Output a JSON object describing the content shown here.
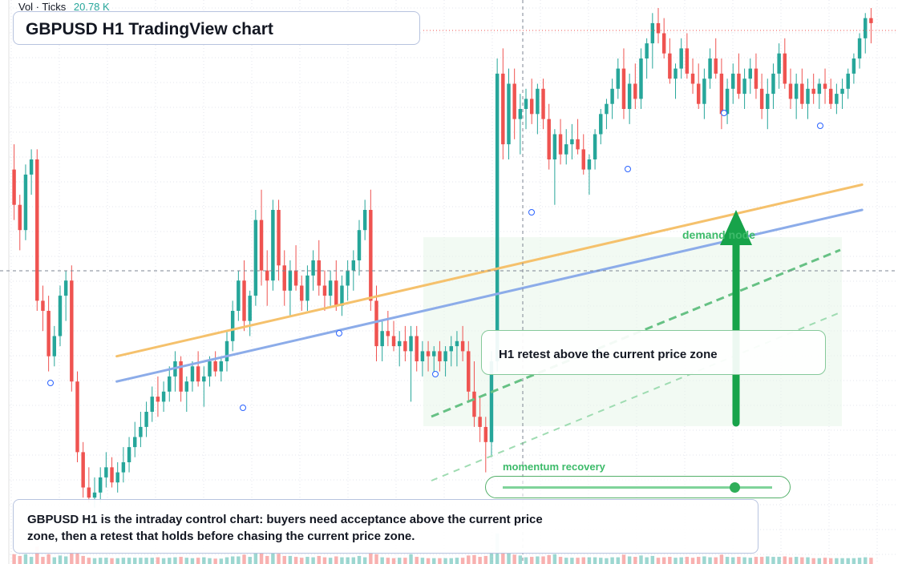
{
  "header": {
    "vol_label": "Vol · Ticks",
    "vol_value": "20.78 K",
    "title": "GBPUSD H1 TradingView chart"
  },
  "annotations": {
    "callout": "H1 retest above the current price zone",
    "demand_label": "demand node",
    "momentum_label": "momentum recovery",
    "momentum_level": 0.86,
    "note": "GBPUSD H1 is the intraday control chart: buyers need acceptance above the current price zone, then a retest that holds before chasing the current price zone."
  },
  "colors": {
    "up": "#26a69a",
    "down": "#ef5350",
    "orange_line": "#f5c16c",
    "blue_line": "#8cace9",
    "green_accent": "#3dbb6a",
    "zone_fill": "#e8f5ea"
  },
  "chart_data": {
    "type": "candlestick",
    "symbol": "GBPUSD",
    "timeframe": "H1",
    "price_scale": "relative (no axis labels shown)",
    "ylim": [
      0,
      100
    ],
    "candles": [
      {
        "o": 68,
        "h": 73,
        "l": 58,
        "c": 61
      },
      {
        "o": 61,
        "h": 63,
        "l": 52,
        "c": 56
      },
      {
        "o": 56,
        "h": 69,
        "l": 54,
        "c": 67
      },
      {
        "o": 67,
        "h": 72,
        "l": 63,
        "c": 70
      },
      {
        "o": 70,
        "h": 72,
        "l": 40,
        "c": 42
      },
      {
        "o": 42,
        "h": 45,
        "l": 36,
        "c": 40
      },
      {
        "o": 40,
        "h": 43,
        "l": 28,
        "c": 31
      },
      {
        "o": 31,
        "h": 37,
        "l": 29,
        "c": 35
      },
      {
        "o": 35,
        "h": 45,
        "l": 33,
        "c": 43
      },
      {
        "o": 43,
        "h": 48,
        "l": 38,
        "c": 46
      },
      {
        "o": 46,
        "h": 49,
        "l": 24,
        "c": 26
      },
      {
        "o": 26,
        "h": 28,
        "l": 10,
        "c": 12
      },
      {
        "o": 12,
        "h": 14,
        "l": 3,
        "c": 5
      },
      {
        "o": 5,
        "h": 9,
        "l": 2,
        "c": 3
      },
      {
        "o": 3,
        "h": 7,
        "l": 1,
        "c": 4
      },
      {
        "o": 4,
        "h": 9,
        "l": 2,
        "c": 7
      },
      {
        "o": 7,
        "h": 12,
        "l": 5,
        "c": 9
      },
      {
        "o": 9,
        "h": 11,
        "l": 5,
        "c": 6
      },
      {
        "o": 6,
        "h": 10,
        "l": 4,
        "c": 8
      },
      {
        "o": 8,
        "h": 13,
        "l": 6,
        "c": 10
      },
      {
        "o": 10,
        "h": 15,
        "l": 8,
        "c": 13
      },
      {
        "o": 13,
        "h": 18,
        "l": 11,
        "c": 15
      },
      {
        "o": 15,
        "h": 20,
        "l": 13,
        "c": 17
      },
      {
        "o": 17,
        "h": 22,
        "l": 15,
        "c": 20
      },
      {
        "o": 20,
        "h": 25,
        "l": 18,
        "c": 23
      },
      {
        "o": 23,
        "h": 27,
        "l": 19,
        "c": 22
      },
      {
        "o": 22,
        "h": 26,
        "l": 20,
        "c": 24
      },
      {
        "o": 24,
        "h": 29,
        "l": 22,
        "c": 27
      },
      {
        "o": 27,
        "h": 32,
        "l": 24,
        "c": 30
      },
      {
        "o": 30,
        "h": 31,
        "l": 22,
        "c": 24
      },
      {
        "o": 24,
        "h": 27,
        "l": 20,
        "c": 26
      },
      {
        "o": 26,
        "h": 30,
        "l": 24,
        "c": 29
      },
      {
        "o": 29,
        "h": 32,
        "l": 25,
        "c": 26
      },
      {
        "o": 26,
        "h": 29,
        "l": 21,
        "c": 27
      },
      {
        "o": 27,
        "h": 31,
        "l": 25,
        "c": 30
      },
      {
        "o": 30,
        "h": 32,
        "l": 27,
        "c": 28
      },
      {
        "o": 28,
        "h": 31,
        "l": 26,
        "c": 30
      },
      {
        "o": 30,
        "h": 36,
        "l": 28,
        "c": 34
      },
      {
        "o": 34,
        "h": 42,
        "l": 32,
        "c": 40
      },
      {
        "o": 40,
        "h": 48,
        "l": 38,
        "c": 46
      },
      {
        "o": 46,
        "h": 50,
        "l": 36,
        "c": 38
      },
      {
        "o": 38,
        "h": 44,
        "l": 35,
        "c": 43
      },
      {
        "o": 43,
        "h": 60,
        "l": 41,
        "c": 58
      },
      {
        "o": 58,
        "h": 64,
        "l": 45,
        "c": 48
      },
      {
        "o": 48,
        "h": 52,
        "l": 41,
        "c": 46
      },
      {
        "o": 46,
        "h": 62,
        "l": 44,
        "c": 60
      },
      {
        "o": 60,
        "h": 62,
        "l": 46,
        "c": 49
      },
      {
        "o": 49,
        "h": 52,
        "l": 41,
        "c": 44
      },
      {
        "o": 44,
        "h": 50,
        "l": 39,
        "c": 48
      },
      {
        "o": 48,
        "h": 53,
        "l": 44,
        "c": 45
      },
      {
        "o": 45,
        "h": 47,
        "l": 40,
        "c": 42
      },
      {
        "o": 42,
        "h": 49,
        "l": 40,
        "c": 47
      },
      {
        "o": 47,
        "h": 52,
        "l": 44,
        "c": 50
      },
      {
        "o": 50,
        "h": 54,
        "l": 43,
        "c": 45
      },
      {
        "o": 45,
        "h": 48,
        "l": 40,
        "c": 43
      },
      {
        "o": 43,
        "h": 48,
        "l": 41,
        "c": 46
      },
      {
        "o": 46,
        "h": 50,
        "l": 40,
        "c": 41
      },
      {
        "o": 41,
        "h": 47,
        "l": 39,
        "c": 45
      },
      {
        "o": 45,
        "h": 50,
        "l": 42,
        "c": 48
      },
      {
        "o": 48,
        "h": 52,
        "l": 44,
        "c": 50
      },
      {
        "o": 50,
        "h": 58,
        "l": 47,
        "c": 56
      },
      {
        "o": 56,
        "h": 62,
        "l": 54,
        "c": 60
      },
      {
        "o": 60,
        "h": 64,
        "l": 40,
        "c": 42
      },
      {
        "o": 42,
        "h": 45,
        "l": 30,
        "c": 33
      },
      {
        "o": 33,
        "h": 38,
        "l": 30,
        "c": 36
      },
      {
        "o": 36,
        "h": 40,
        "l": 33,
        "c": 35
      },
      {
        "o": 35,
        "h": 38,
        "l": 32,
        "c": 33
      },
      {
        "o": 33,
        "h": 36,
        "l": 29,
        "c": 34
      },
      {
        "o": 34,
        "h": 37,
        "l": 30,
        "c": 32
      },
      {
        "o": 32,
        "h": 37,
        "l": 22,
        "c": 35
      },
      {
        "o": 35,
        "h": 37,
        "l": 28,
        "c": 30
      },
      {
        "o": 30,
        "h": 34,
        "l": 27,
        "c": 32
      },
      {
        "o": 32,
        "h": 34,
        "l": 28,
        "c": 31
      },
      {
        "o": 31,
        "h": 33,
        "l": 27,
        "c": 32
      },
      {
        "o": 32,
        "h": 34,
        "l": 28,
        "c": 30
      },
      {
        "o": 30,
        "h": 33,
        "l": 27,
        "c": 32
      },
      {
        "o": 32,
        "h": 35,
        "l": 29,
        "c": 33
      },
      {
        "o": 33,
        "h": 36,
        "l": 29,
        "c": 34
      },
      {
        "o": 34,
        "h": 37,
        "l": 30,
        "c": 32
      },
      {
        "o": 32,
        "h": 34,
        "l": 22,
        "c": 24
      },
      {
        "o": 24,
        "h": 30,
        "l": 17,
        "c": 19
      },
      {
        "o": 19,
        "h": 23,
        "l": 14,
        "c": 17
      },
      {
        "o": 17,
        "h": 19,
        "l": 8,
        "c": 14
      },
      {
        "o": 14,
        "h": 32,
        "l": 11,
        "c": 30
      },
      {
        "o": 30,
        "h": 90,
        "l": 28,
        "c": 87
      },
      {
        "o": 87,
        "h": 92,
        "l": 70,
        "c": 73
      },
      {
        "o": 73,
        "h": 88,
        "l": 70,
        "c": 85
      },
      {
        "o": 85,
        "h": 88,
        "l": 74,
        "c": 78
      },
      {
        "o": 78,
        "h": 83,
        "l": 71,
        "c": 80
      },
      {
        "o": 80,
        "h": 84,
        "l": 76,
        "c": 82
      },
      {
        "o": 82,
        "h": 86,
        "l": 77,
        "c": 79
      },
      {
        "o": 79,
        "h": 85,
        "l": 75,
        "c": 84
      },
      {
        "o": 84,
        "h": 86,
        "l": 76,
        "c": 78
      },
      {
        "o": 78,
        "h": 81,
        "l": 68,
        "c": 70
      },
      {
        "o": 70,
        "h": 76,
        "l": 61,
        "c": 75
      },
      {
        "o": 75,
        "h": 78,
        "l": 69,
        "c": 71
      },
      {
        "o": 71,
        "h": 76,
        "l": 69,
        "c": 73
      },
      {
        "o": 73,
        "h": 77,
        "l": 70,
        "c": 74
      },
      {
        "o": 74,
        "h": 78,
        "l": 71,
        "c": 72
      },
      {
        "o": 72,
        "h": 75,
        "l": 67,
        "c": 68
      },
      {
        "o": 68,
        "h": 71,
        "l": 63,
        "c": 70
      },
      {
        "o": 70,
        "h": 76,
        "l": 68,
        "c": 75
      },
      {
        "o": 75,
        "h": 80,
        "l": 73,
        "c": 79
      },
      {
        "o": 79,
        "h": 82,
        "l": 76,
        "c": 81
      },
      {
        "o": 81,
        "h": 86,
        "l": 78,
        "c": 84
      },
      {
        "o": 84,
        "h": 90,
        "l": 82,
        "c": 88
      },
      {
        "o": 88,
        "h": 92,
        "l": 78,
        "c": 80
      },
      {
        "o": 80,
        "h": 87,
        "l": 77,
        "c": 85
      },
      {
        "o": 85,
        "h": 89,
        "l": 80,
        "c": 82
      },
      {
        "o": 82,
        "h": 92,
        "l": 80,
        "c": 90
      },
      {
        "o": 90,
        "h": 94,
        "l": 86,
        "c": 93
      },
      {
        "o": 93,
        "h": 99,
        "l": 88,
        "c": 97
      },
      {
        "o": 97,
        "h": 100,
        "l": 93,
        "c": 95
      },
      {
        "o": 95,
        "h": 98,
        "l": 90,
        "c": 91
      },
      {
        "o": 91,
        "h": 94,
        "l": 85,
        "c": 86
      },
      {
        "o": 86,
        "h": 89,
        "l": 82,
        "c": 88
      },
      {
        "o": 88,
        "h": 94,
        "l": 86,
        "c": 92
      },
      {
        "o": 92,
        "h": 95,
        "l": 86,
        "c": 87
      },
      {
        "o": 87,
        "h": 90,
        "l": 83,
        "c": 85
      },
      {
        "o": 85,
        "h": 89,
        "l": 80,
        "c": 81
      },
      {
        "o": 81,
        "h": 88,
        "l": 78,
        "c": 86
      },
      {
        "o": 86,
        "h": 92,
        "l": 84,
        "c": 90
      },
      {
        "o": 90,
        "h": 94,
        "l": 86,
        "c": 87
      },
      {
        "o": 87,
        "h": 90,
        "l": 76,
        "c": 79
      },
      {
        "o": 79,
        "h": 86,
        "l": 77,
        "c": 84
      },
      {
        "o": 84,
        "h": 89,
        "l": 81,
        "c": 87
      },
      {
        "o": 87,
        "h": 91,
        "l": 82,
        "c": 83
      },
      {
        "o": 83,
        "h": 88,
        "l": 80,
        "c": 86
      },
      {
        "o": 86,
        "h": 90,
        "l": 83,
        "c": 88
      },
      {
        "o": 88,
        "h": 91,
        "l": 82,
        "c": 84
      },
      {
        "o": 84,
        "h": 87,
        "l": 78,
        "c": 80
      },
      {
        "o": 80,
        "h": 86,
        "l": 76,
        "c": 83
      },
      {
        "o": 83,
        "h": 89,
        "l": 80,
        "c": 87
      },
      {
        "o": 87,
        "h": 93,
        "l": 84,
        "c": 91
      },
      {
        "o": 91,
        "h": 94,
        "l": 84,
        "c": 85
      },
      {
        "o": 85,
        "h": 88,
        "l": 80,
        "c": 82
      },
      {
        "o": 82,
        "h": 87,
        "l": 78,
        "c": 85
      },
      {
        "o": 85,
        "h": 88,
        "l": 80,
        "c": 81
      },
      {
        "o": 81,
        "h": 86,
        "l": 78,
        "c": 84
      },
      {
        "o": 84,
        "h": 87,
        "l": 81,
        "c": 83
      },
      {
        "o": 83,
        "h": 86,
        "l": 80,
        "c": 85
      },
      {
        "o": 85,
        "h": 88,
        "l": 81,
        "c": 84
      },
      {
        "o": 84,
        "h": 86,
        "l": 80,
        "c": 81
      },
      {
        "o": 81,
        "h": 85,
        "l": 79,
        "c": 83
      },
      {
        "o": 83,
        "h": 86,
        "l": 80,
        "c": 84
      },
      {
        "o": 84,
        "h": 88,
        "l": 82,
        "c": 87
      },
      {
        "o": 87,
        "h": 91,
        "l": 85,
        "c": 90
      },
      {
        "o": 90,
        "h": 95,
        "l": 88,
        "c": 94
      },
      {
        "o": 94,
        "h": 99,
        "l": 91,
        "c": 98
      },
      {
        "o": 98,
        "h": 100,
        "l": 93,
        "c": 97
      }
    ],
    "trend_lines": [
      {
        "name": "orange",
        "x": [
          0.13,
          0.96
        ],
        "y": [
          31,
          65
        ]
      },
      {
        "name": "blue",
        "x": [
          0.13,
          0.96
        ],
        "y": [
          26,
          60
        ]
      }
    ],
    "grid": "dotted",
    "legend": "none"
  }
}
